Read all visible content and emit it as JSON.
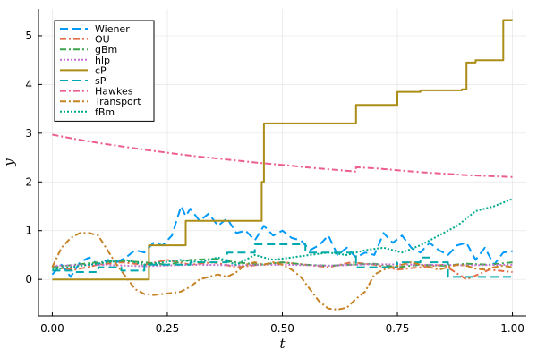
{
  "chart_data": {
    "type": "line",
    "xlabel": "t",
    "ylabel": "y",
    "xlim": [
      -0.03,
      1.03
    ],
    "ylim": [
      -0.75,
      5.55
    ],
    "xticks": [
      0.0,
      0.25,
      0.5,
      0.75,
      1.0
    ],
    "xtick_labels": [
      "0.00",
      "0.25",
      "0.50",
      "0.75",
      "1.00"
    ],
    "yticks": [
      0,
      1,
      2,
      3,
      4,
      5
    ],
    "ytick_labels": [
      "0",
      "1",
      "2",
      "3",
      "4",
      "5"
    ],
    "grid": true,
    "legend_position": "top-left",
    "series": [
      {
        "name": "Wiener",
        "color": "#009AFA",
        "dash": "long-dash",
        "step": false,
        "x": [
          0,
          0.02,
          0.04,
          0.06,
          0.08,
          0.1,
          0.12,
          0.14,
          0.16,
          0.18,
          0.2,
          0.22,
          0.24,
          0.26,
          0.27,
          0.28,
          0.29,
          0.3,
          0.32,
          0.34,
          0.36,
          0.38,
          0.4,
          0.42,
          0.44,
          0.46,
          0.48,
          0.5,
          0.52,
          0.54,
          0.56,
          0.58,
          0.6,
          0.62,
          0.64,
          0.66,
          0.68,
          0.7,
          0.72,
          0.74,
          0.76,
          0.78,
          0.8,
          0.82,
          0.84,
          0.86,
          0.88,
          0.9,
          0.92,
          0.94,
          0.96,
          0.98,
          1.0
        ],
        "y": [
          0.1,
          0.3,
          0.05,
          0.35,
          0.45,
          0.3,
          0.4,
          0.35,
          0.45,
          0.6,
          0.55,
          0.75,
          0.7,
          0.9,
          1.2,
          1.5,
          1.3,
          1.45,
          1.2,
          1.35,
          1.1,
          1.25,
          0.95,
          1.0,
          0.8,
          1.1,
          0.9,
          1.0,
          0.85,
          0.8,
          0.6,
          0.7,
          0.9,
          0.5,
          0.65,
          0.45,
          0.55,
          0.5,
          0.95,
          0.75,
          0.9,
          0.65,
          0.55,
          0.75,
          0.6,
          0.5,
          0.7,
          0.75,
          0.4,
          0.65,
          0.3,
          0.55,
          0.58
        ]
      },
      {
        "name": "OU",
        "color": "#E36F47",
        "dash": "dash-dot",
        "step": false,
        "x": [
          0,
          0.05,
          0.1,
          0.15,
          0.2,
          0.25,
          0.3,
          0.35,
          0.4,
          0.45,
          0.5,
          0.55,
          0.6,
          0.65,
          0.7,
          0.75,
          0.8,
          0.85,
          0.9,
          0.95,
          1.0
        ],
        "y": [
          0.25,
          0.2,
          0.3,
          0.35,
          0.3,
          0.4,
          0.3,
          0.35,
          0.25,
          0.3,
          0.35,
          0.3,
          0.25,
          0.35,
          0.3,
          0.2,
          0.25,
          0.3,
          0.0,
          0.2,
          0.15
        ]
      },
      {
        "name": "gBm",
        "color": "#3DA44D",
        "dash": "dash-dot",
        "step": false,
        "x": [
          0,
          0.05,
          0.1,
          0.15,
          0.2,
          0.25,
          0.3,
          0.35,
          0.4,
          0.45,
          0.5,
          0.55,
          0.6,
          0.65,
          0.7,
          0.75,
          0.8,
          0.85,
          0.9,
          0.95,
          1.0
        ],
        "y": [
          0.25,
          0.3,
          0.35,
          0.38,
          0.35,
          0.3,
          0.4,
          0.42,
          0.35,
          0.3,
          0.35,
          0.3,
          0.28,
          0.3,
          0.32,
          0.25,
          0.3,
          0.28,
          0.32,
          0.3,
          0.35
        ]
      },
      {
        "name": "hlp",
        "color": "#C271D2",
        "dash": "dotted",
        "step": false,
        "x": [
          0,
          0.1,
          0.2,
          0.3,
          0.4,
          0.5,
          0.6,
          0.7,
          0.8,
          0.9,
          1.0
        ],
        "y": [
          0.28,
          0.3,
          0.27,
          0.3,
          0.29,
          0.3,
          0.28,
          0.31,
          0.3,
          0.29,
          0.3
        ]
      },
      {
        "name": "cP",
        "color": "#AC8D18",
        "dash": "solid",
        "step": true,
        "x": [
          0,
          0.21,
          0.29,
          0.455,
          0.46,
          0.66,
          0.75,
          0.8,
          0.89,
          0.9,
          0.92,
          0.98,
          1.0
        ],
        "y": [
          0.0,
          0.7,
          1.2,
          2.0,
          3.2,
          3.58,
          3.85,
          3.88,
          3.9,
          4.45,
          4.5,
          5.32,
          5.32
        ]
      },
      {
        "name": "sP",
        "color": "#00A9AD",
        "dash": "long-dash",
        "step": true,
        "x": [
          0,
          0.05,
          0.1,
          0.15,
          0.2,
          0.3,
          0.38,
          0.44,
          0.5,
          0.55,
          0.6,
          0.66,
          0.75,
          0.8,
          0.82,
          0.86,
          0.9,
          0.95,
          1.0
        ],
        "y": [
          0.18,
          0.15,
          0.25,
          0.18,
          0.3,
          0.35,
          0.55,
          0.72,
          0.72,
          0.55,
          0.55,
          0.25,
          0.35,
          0.45,
          0.35,
          0.05,
          0.05,
          0.05,
          0.05
        ]
      },
      {
        "name": "Hawkes",
        "color": "#ED5D92",
        "dash": "dash-dot",
        "step": false,
        "x": [
          0,
          0.05,
          0.1,
          0.15,
          0.2,
          0.25,
          0.3,
          0.35,
          0.4,
          0.45,
          0.5,
          0.55,
          0.6,
          0.65,
          0.66,
          0.66,
          0.7,
          0.75,
          0.8,
          0.85,
          0.9,
          0.95,
          1.0
        ],
        "y": [
          2.97,
          2.88,
          2.8,
          2.73,
          2.66,
          2.6,
          2.54,
          2.49,
          2.44,
          2.39,
          2.35,
          2.3,
          2.26,
          2.22,
          2.21,
          2.3,
          2.28,
          2.24,
          2.2,
          2.17,
          2.14,
          2.12,
          2.1
        ]
      },
      {
        "name": "Transport",
        "color": "#C68225",
        "dash": "dash-dot",
        "step": false,
        "x": [
          0,
          0.02,
          0.04,
          0.06,
          0.08,
          0.1,
          0.12,
          0.14,
          0.16,
          0.18,
          0.2,
          0.22,
          0.24,
          0.26,
          0.28,
          0.3,
          0.32,
          0.34,
          0.36,
          0.38,
          0.4,
          0.42,
          0.44,
          0.46,
          0.48,
          0.5,
          0.52,
          0.54,
          0.56,
          0.58,
          0.6,
          0.62,
          0.64,
          0.66,
          0.68,
          0.7,
          0.72,
          0.74,
          0.76,
          0.78,
          0.8,
          0.82,
          0.84,
          0.86,
          0.88,
          0.9,
          0.92,
          0.94,
          0.96,
          0.98,
          1.0
        ],
        "y": [
          0.25,
          0.65,
          0.85,
          0.95,
          0.95,
          0.9,
          0.6,
          0.3,
          0.05,
          -0.2,
          -0.3,
          -0.32,
          -0.3,
          -0.28,
          -0.25,
          -0.15,
          0.0,
          0.05,
          0.1,
          0.05,
          0.15,
          0.3,
          0.35,
          0.3,
          0.35,
          0.3,
          0.2,
          0.05,
          -0.2,
          -0.45,
          -0.6,
          -0.62,
          -0.58,
          -0.4,
          -0.25,
          0.1,
          0.2,
          0.25,
          0.3,
          0.35,
          0.3,
          0.25,
          0.2,
          0.25,
          0.3,
          0.28,
          0.22,
          0.2,
          0.25,
          0.28,
          0.25
        ]
      },
      {
        "name": "fBm",
        "color": "#00A98D",
        "dash": "dotted",
        "step": false,
        "x": [
          0,
          0.04,
          0.08,
          0.12,
          0.16,
          0.2,
          0.24,
          0.28,
          0.32,
          0.36,
          0.4,
          0.44,
          0.48,
          0.52,
          0.56,
          0.6,
          0.64,
          0.68,
          0.72,
          0.76,
          0.8,
          0.84,
          0.88,
          0.92,
          0.96,
          1.0
        ],
        "y": [
          0.2,
          0.25,
          0.3,
          0.35,
          0.4,
          0.3,
          0.35,
          0.4,
          0.35,
          0.45,
          0.3,
          0.5,
          0.4,
          0.45,
          0.5,
          0.55,
          0.5,
          0.6,
          0.65,
          0.55,
          0.7,
          0.9,
          1.1,
          1.4,
          1.5,
          1.65
        ]
      }
    ]
  }
}
